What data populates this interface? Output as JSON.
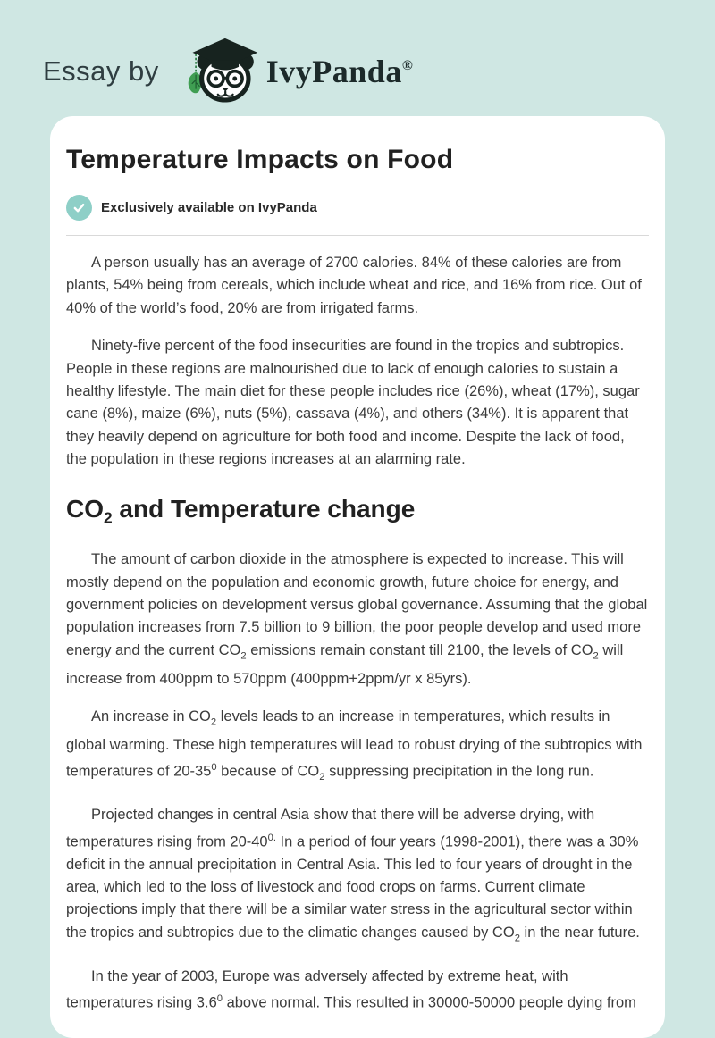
{
  "colors": {
    "page_background": "#cfe7e3",
    "card_background": "#ffffff",
    "badge_circle": "#8ecfc7",
    "leaf_green": "#3f9e52",
    "ink": "#1c2a2a"
  },
  "header": {
    "prefix": "Essay by",
    "brand": "IvyPanda",
    "registered": "®",
    "logo": "ivypanda-panda-logo"
  },
  "article": {
    "title": "Temperature Impacts on Food",
    "badge": {
      "icon": "check-icon",
      "label": "Exclusively available on IvyPanda"
    },
    "section_heading": {
      "segments": [
        {
          "t": "CO"
        },
        {
          "sub": "2"
        },
        {
          "t": " and Temperature change"
        }
      ]
    },
    "paragraphs": [
      {
        "segments": [
          {
            "t": "A person usually has an average of 2700 calories. 84% of these calories are from plants, 54% being from cereals, which include wheat and rice, and 16% from rice. Out of 40% of the world’s food, 20% are from irrigated farms."
          }
        ]
      },
      {
        "segments": [
          {
            "t": "Ninety-five percent of the food insecurities are found in the tropics and subtropics. People in these regions are malnourished due to lack of enough calories to sustain a healthy lifestyle. The main diet for these people includes rice (26%), wheat (17%), sugar cane (8%), maize (6%), nuts (5%), cassava (4%), and others (34%). It is apparent that they heavily depend on agriculture for both food and income. Despite the lack of food, the population in these regions increases at an alarming rate."
          }
        ]
      },
      {
        "segments": [
          {
            "t": "The amount of carbon dioxide in the atmosphere is expected to increase. This will mostly depend on the population and economic growth, future choice for energy, and government policies on development versus global governance. Assuming that the global population increases from 7.5 billion to 9 billion, the poor people develop and used more energy and the current CO"
          },
          {
            "sub": "2"
          },
          {
            "t": " emissions remain constant till 2100, the levels of CO"
          },
          {
            "sub": "2"
          },
          {
            "t": " will increase from 400ppm to 570ppm (400ppm+2ppm/yr x 85yrs)."
          }
        ]
      },
      {
        "segments": [
          {
            "t": "An increase in CO"
          },
          {
            "sub": "2"
          },
          {
            "t": " levels leads to an increase in temperatures, which results in global warming. These high temperatures will lead to robust drying of the subtropics with temperatures of 20-35"
          },
          {
            "sup": "0"
          },
          {
            "t": " because of CO"
          },
          {
            "sub": "2"
          },
          {
            "t": " suppressing precipitation in the long run."
          }
        ]
      },
      {
        "segments": [
          {
            "t": "Projected changes in central Asia show that there will be adverse drying, with temperatures rising from 20-40"
          },
          {
            "sup": "0."
          },
          {
            "t": " In a period of four years (1998-2001), there was a 30% deficit in the annual precipitation in Central Asia. This led to four years of drought in the area, which led to the loss of livestock and food crops on farms. Current climate projections imply that there will be a similar water stress in the agricultural sector within the tropics and subtropics due to the climatic changes caused by CO"
          },
          {
            "sub": "2"
          },
          {
            "t": " in the near future."
          }
        ]
      },
      {
        "segments": [
          {
            "t": "In the year of 2003, Europe was adversely affected by extreme heat, with temperatures rising 3.6"
          },
          {
            "sup": "0"
          },
          {
            "t": " above normal. This resulted in 30000-50000 people dying from"
          }
        ]
      }
    ]
  }
}
